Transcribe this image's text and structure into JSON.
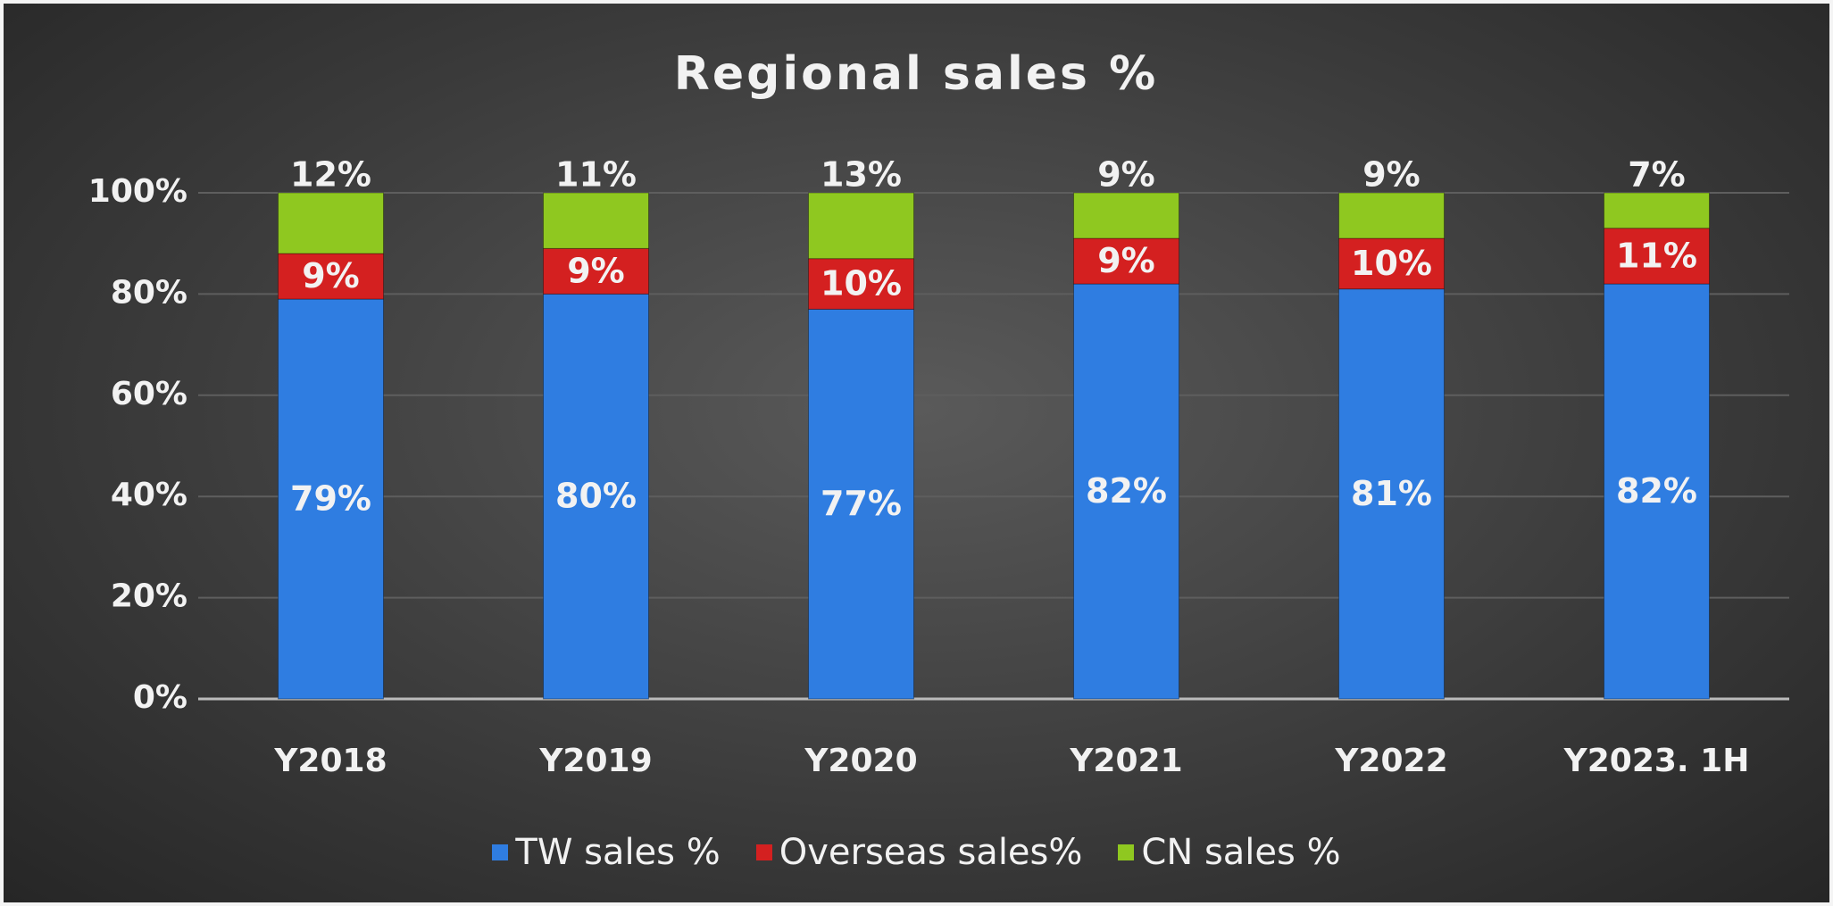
{
  "chart_data": {
    "type": "stacked_bar",
    "title": "Regional sales %",
    "categories": [
      "Y2018",
      "Y2019",
      "Y2020",
      "Y2021",
      "Y2022",
      "Y2023. 1H"
    ],
    "series": [
      {
        "name": "TW sales %",
        "color": "#2f7de1",
        "values": [
          79,
          80,
          77,
          82,
          81,
          82
        ],
        "value_labels": [
          "79%",
          "80%",
          "77%",
          "82%",
          "81%",
          "82%"
        ]
      },
      {
        "name": "Overseas sales%",
        "color": "#d42020",
        "values": [
          9,
          9,
          10,
          9,
          10,
          11
        ],
        "value_labels": [
          "9%",
          "9%",
          "10%",
          "9%",
          "10%",
          "11%"
        ]
      },
      {
        "name": "CN sales %",
        "color": "#8fc820",
        "values": [
          12,
          11,
          13,
          9,
          9,
          7
        ],
        "value_labels": [
          "12%",
          "11%",
          "13%",
          "9%",
          "9%",
          "7%"
        ]
      }
    ],
    "ylim": [
      0,
      100
    ],
    "yticks": [
      {
        "value": 0,
        "label": "0%"
      },
      {
        "value": 20,
        "label": "20%"
      },
      {
        "value": 40,
        "label": "40%"
      },
      {
        "value": 60,
        "label": "60%"
      },
      {
        "value": 80,
        "label": "80%"
      },
      {
        "value": 100,
        "label": "100%"
      }
    ],
    "grid": true,
    "legend": "bottom"
  }
}
